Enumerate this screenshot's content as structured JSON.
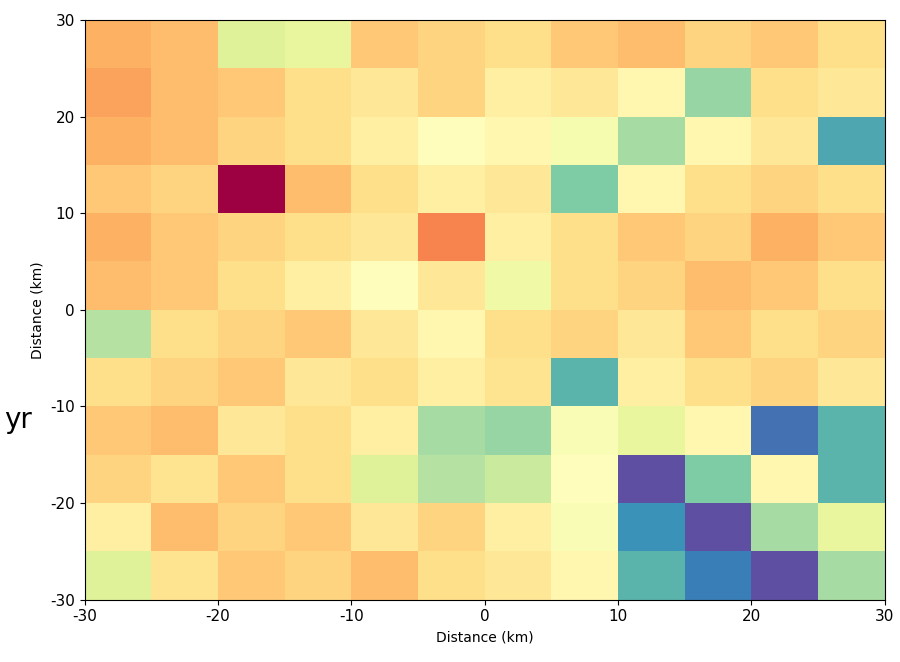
{
  "chart_data": {
    "type": "heatmap",
    "x_label": "Distance (km)",
    "y_label": "Distance (km)",
    "annotations": [
      "yr"
    ],
    "x": [
      -27.5,
      -22.5,
      -17.5,
      -12.5,
      -7.5,
      -2.5,
      2.5,
      7.5,
      12.5,
      17.5,
      22.5,
      27.5
    ],
    "y": [
      -27.5,
      -22.5,
      -17.5,
      -12.5,
      -7.5,
      -2.5,
      2.5,
      7.5,
      12.5,
      17.5,
      22.5,
      27.5
    ],
    "cells": [
      [
        0.62,
        0.45,
        0.4,
        0.42,
        0.38,
        0.44,
        0.46,
        0.5,
        0.8,
        0.88,
        0.95,
        0.7
      ],
      [
        0.48,
        0.38,
        0.42,
        0.4,
        0.46,
        0.42,
        0.48,
        0.55,
        0.85,
        0.95,
        0.7,
        0.6
      ],
      [
        0.42,
        0.45,
        0.4,
        0.44,
        0.62,
        0.68,
        0.65,
        0.52,
        0.95,
        0.75,
        0.5,
        0.8
      ],
      [
        0.4,
        0.38,
        0.46,
        0.44,
        0.48,
        0.7,
        0.72,
        0.55,
        0.6,
        0.5,
        0.9,
        0.8
      ],
      [
        0.44,
        0.42,
        0.4,
        0.46,
        0.44,
        0.48,
        0.45,
        0.8,
        0.48,
        0.44,
        0.42,
        0.46
      ],
      [
        0.68,
        0.44,
        0.42,
        0.4,
        0.46,
        0.5,
        0.44,
        0.42,
        0.46,
        0.4,
        0.44,
        0.42
      ],
      [
        0.38,
        0.4,
        0.44,
        0.48,
        0.52,
        0.46,
        0.58,
        0.44,
        0.42,
        0.38,
        0.4,
        0.44
      ],
      [
        0.36,
        0.4,
        0.42,
        0.44,
        0.46,
        0.3,
        0.48,
        0.44,
        0.4,
        0.42,
        0.36,
        0.4
      ],
      [
        0.4,
        0.42,
        0.1,
        0.38,
        0.44,
        0.48,
        0.46,
        0.75,
        0.5,
        0.44,
        0.42,
        0.44
      ],
      [
        0.36,
        0.38,
        0.42,
        0.44,
        0.48,
        0.52,
        0.5,
        0.56,
        0.7,
        0.5,
        0.46,
        0.82
      ],
      [
        0.34,
        0.38,
        0.4,
        0.44,
        0.46,
        0.42,
        0.48,
        0.46,
        0.5,
        0.72,
        0.44,
        0.46
      ],
      [
        0.36,
        0.38,
        0.62,
        0.6,
        0.4,
        0.42,
        0.44,
        0.4,
        0.38,
        0.42,
        0.4,
        0.44
      ]
    ],
    "xlim": [
      -30,
      30
    ],
    "ylim": [
      -30,
      30
    ],
    "xticks": [
      -30,
      -20,
      -10,
      0,
      10,
      20,
      30
    ],
    "yticks": [
      -30,
      -20,
      -10,
      0,
      10,
      20,
      30
    ]
  }
}
